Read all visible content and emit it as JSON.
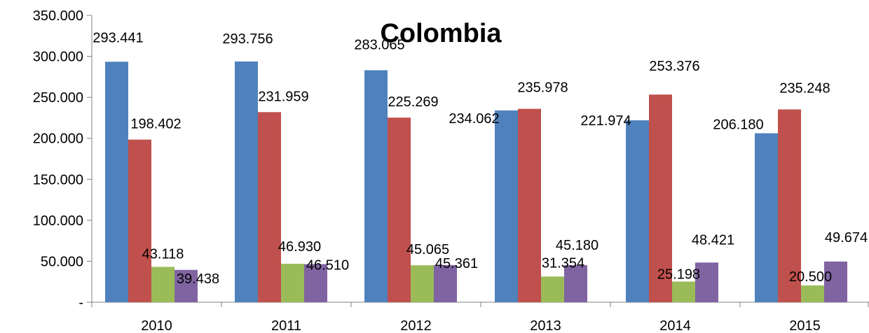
{
  "chart_data": {
    "type": "bar",
    "title": "Colombia",
    "categories": [
      "2010",
      "2011",
      "2012",
      "2013",
      "2014",
      "2015"
    ],
    "series": [
      {
        "color": "#4F81BD",
        "values": [
          293441,
          293756,
          283065,
          234062,
          221974,
          206180
        ]
      },
      {
        "color": "#C0504D",
        "values": [
          198402,
          231959,
          225269,
          235978,
          253376,
          235248
        ]
      },
      {
        "color": "#9BBB59",
        "values": [
          43118,
          46930,
          45065,
          31354,
          25198,
          20500
        ]
      },
      {
        "color": "#8064A2",
        "values": [
          39438,
          46510,
          45361,
          45180,
          48421,
          49674
        ]
      }
    ],
    "data_labels": [
      [
        "293.441",
        "293.756",
        "283.065",
        "234.062",
        "221.974",
        "206.180"
      ],
      [
        "198.402",
        "231.959",
        "225.269",
        "235.978",
        "253.376",
        "235.248"
      ],
      [
        "43.118",
        "46.930",
        "45.065",
        "31.354",
        "25.198",
        "20.500"
      ],
      [
        "39.438",
        "46.510",
        "45.361",
        "45.180",
        "48.421",
        "49.674"
      ]
    ],
    "y_ticks": [
      0,
      50000,
      100000,
      150000,
      200000,
      250000,
      300000,
      350000
    ],
    "y_tick_labels": [
      "-",
      "50.000",
      "100.000",
      "150.000",
      "200.000",
      "250.000",
      "300.000",
      "350.000"
    ],
    "ylim": [
      0,
      350000
    ],
    "grid": false,
    "legend": "none"
  }
}
